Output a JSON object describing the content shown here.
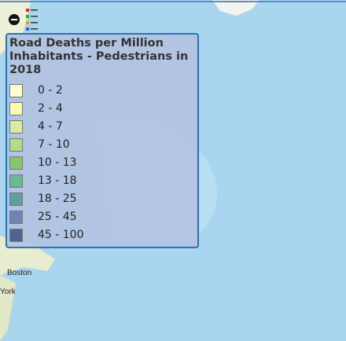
{
  "legend": {
    "title": "Road Deaths per Million Inhabitants - Pedestrians in 2018",
    "items": [
      {
        "label": "0 - 2",
        "color": "#fdfdd0"
      },
      {
        "label": "2 - 4",
        "color": "#fbfab0"
      },
      {
        "label": "4 - 7",
        "color": "#d6ec9e"
      },
      {
        "label": "7 - 10",
        "color": "#b1dc8c"
      },
      {
        "label": "10 - 13",
        "color": "#84c76f"
      },
      {
        "label": "13 - 18",
        "color": "#67ba92"
      },
      {
        "label": "18 - 25",
        "color": "#5f9ea2"
      },
      {
        "label": "25 - 45",
        "color": "#6b86b5"
      },
      {
        "label": "45 - 100",
        "color": "#4f6590"
      }
    ]
  },
  "map_labels": {
    "city_1": "Boston",
    "city_2": "York"
  }
}
